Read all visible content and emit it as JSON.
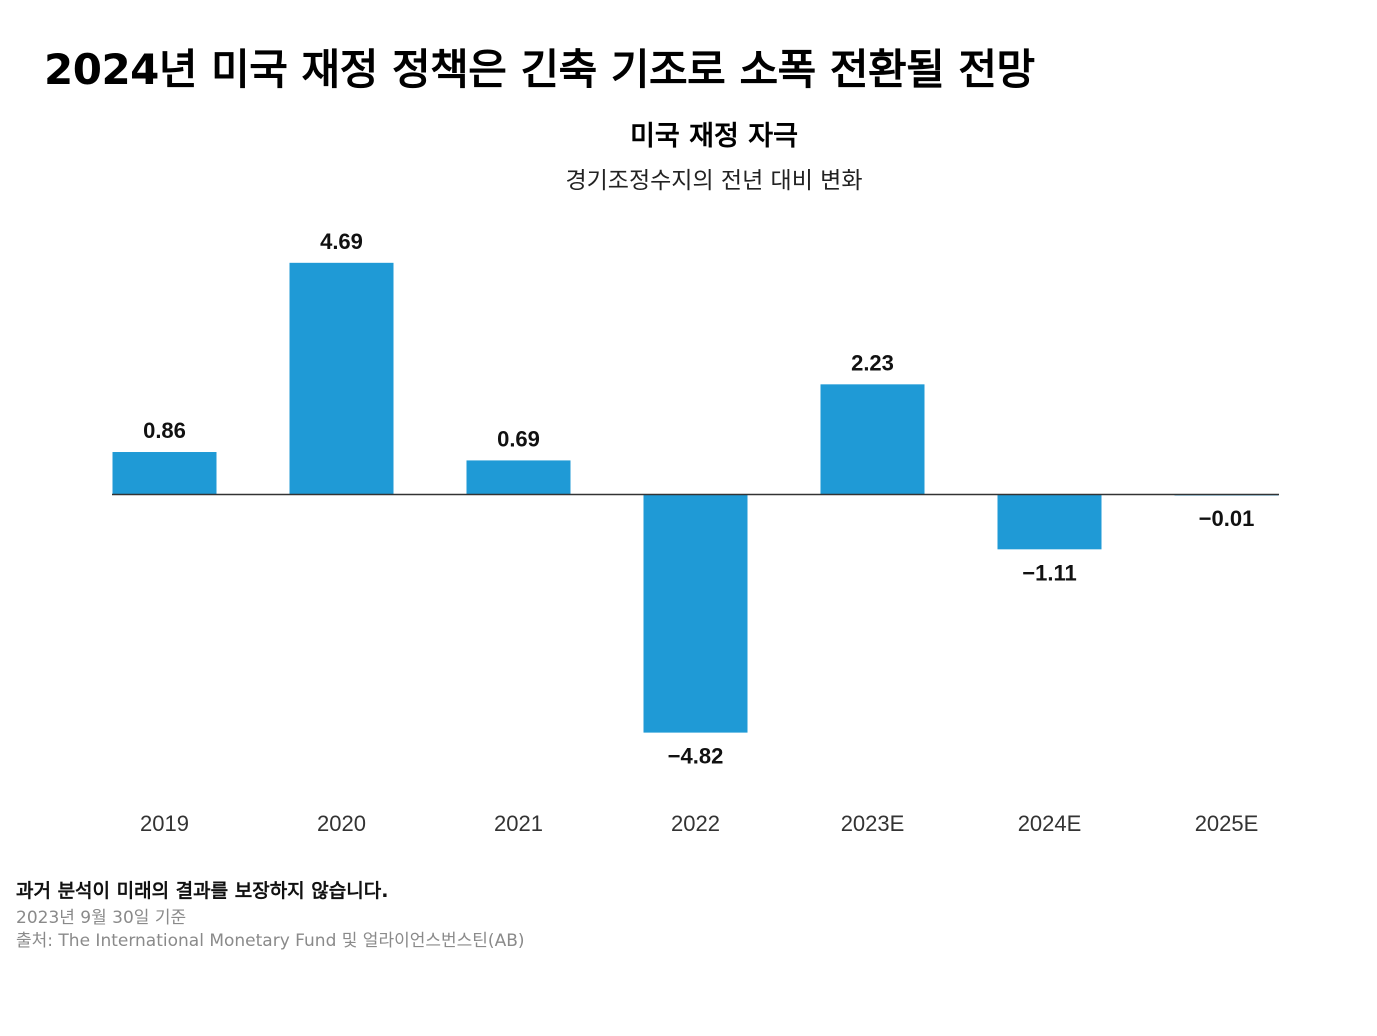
{
  "headline": "2024년 미국 재정 정책은 긴축 기조로 소폭 전환될 전망",
  "chart_data": {
    "type": "bar",
    "title": "미국 재정 자극",
    "subtitle": "경기조정수지의 전년 대비 변화",
    "categories": [
      "2019",
      "2020",
      "2021",
      "2022",
      "2023E",
      "2024E",
      "2025E"
    ],
    "values": [
      0.86,
      4.69,
      0.69,
      -4.82,
      2.23,
      -1.11,
      -0.01
    ],
    "value_labels": [
      "0.86",
      "4.69",
      "0.69",
      "−4.82",
      "2.23",
      "−1.11",
      "−0.01"
    ],
    "bar_color": "#1f9ad6",
    "ylim": [
      -4.82,
      4.69
    ],
    "grid": false,
    "legend": "none"
  },
  "footnotes": {
    "disclaimer": "과거 분석이 미래의 결과를 보장하지 않습니다.",
    "date": "2023년 9월 30일 기준",
    "source": "출처: The International Monetary Fund 및 얼라이언스번스틴(AB)"
  }
}
